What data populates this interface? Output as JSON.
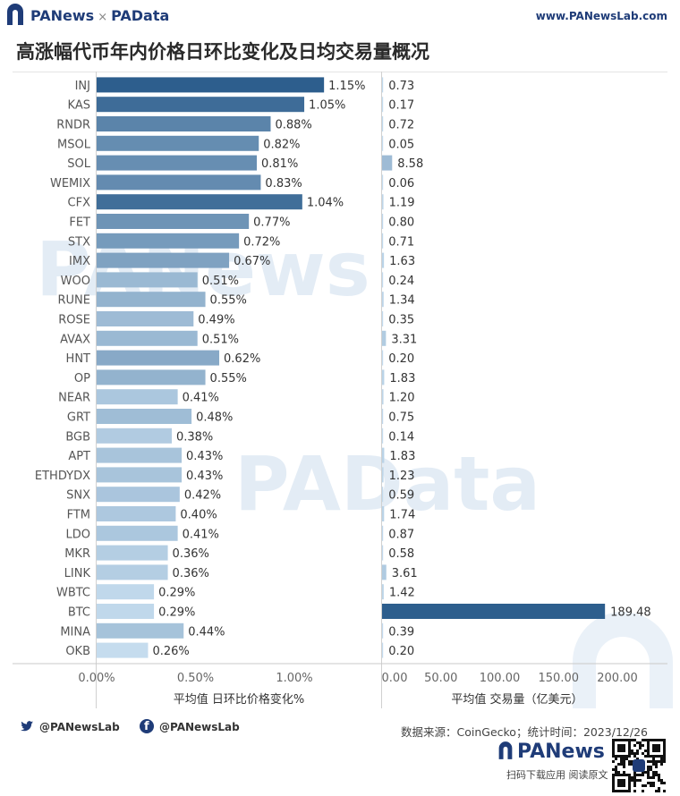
{
  "header": {
    "brand_left": "PANews",
    "brand_sep": "×",
    "brand_right": "PAData",
    "site": "www.PANewsLab.com",
    "title": "高涨幅代币年内价格日环比变化及日均交易量概况"
  },
  "footer": {
    "twitter": "@PANewsLab",
    "facebook": "@PANewsLab",
    "source": "数据来源：CoinGecko；统计时间：2023/12/26",
    "logo": "PANews",
    "logo_sub": "扫码下载应用  阅读原文"
  },
  "watermarks": [
    "PANews",
    "PAData"
  ],
  "colors": {
    "brand": "#1f3c78",
    "bar_dark": "#2d5e8d",
    "bar_light": "#c5dcee"
  },
  "chart_data": [
    {
      "type": "bar",
      "orientation": "horizontal",
      "categories": [
        "INJ",
        "KAS",
        "RNDR",
        "MSOL",
        "SOL",
        "WEMIX",
        "CFX",
        "FET",
        "STX",
        "IMX",
        "WOO",
        "RUNE",
        "ROSE",
        "AVAX",
        "HNT",
        "OP",
        "NEAR",
        "GRT",
        "BGB",
        "APT",
        "ETHDYDX",
        "SNX",
        "FTM",
        "LDO",
        "MKR",
        "LINK",
        "WBTC",
        "BTC",
        "MINA",
        "OKB"
      ],
      "values": [
        1.15,
        1.05,
        0.88,
        0.82,
        0.81,
        0.83,
        1.04,
        0.77,
        0.72,
        0.67,
        0.51,
        0.55,
        0.49,
        0.51,
        0.62,
        0.55,
        0.41,
        0.48,
        0.38,
        0.43,
        0.43,
        0.42,
        0.4,
        0.41,
        0.36,
        0.36,
        0.29,
        0.29,
        0.44,
        0.26
      ],
      "data_labels": [
        "1.15%",
        "1.05%",
        "0.88%",
        "0.82%",
        "0.81%",
        "0.83%",
        "1.04%",
        "0.77%",
        "0.72%",
        "0.67%",
        "0.51%",
        "0.55%",
        "0.49%",
        "0.51%",
        "0.62%",
        "0.55%",
        "0.41%",
        "0.48%",
        "0.38%",
        "0.43%",
        "0.43%",
        "0.42%",
        "0.40%",
        "0.41%",
        "0.36%",
        "0.36%",
        "0.29%",
        "0.29%",
        "0.44%",
        "0.26%"
      ],
      "xlim": [
        0,
        1.25
      ],
      "ticks": [
        0,
        0.5,
        1.0
      ],
      "tick_labels": [
        "0.00%",
        "0.50%",
        "1.00%"
      ],
      "xlabel": "平均值 日环比价格变化%"
    },
    {
      "type": "bar",
      "orientation": "horizontal",
      "categories": [
        "INJ",
        "KAS",
        "RNDR",
        "MSOL",
        "SOL",
        "WEMIX",
        "CFX",
        "FET",
        "STX",
        "IMX",
        "WOO",
        "RUNE",
        "ROSE",
        "AVAX",
        "HNT",
        "OP",
        "NEAR",
        "GRT",
        "BGB",
        "APT",
        "ETHDYDX",
        "SNX",
        "FTM",
        "LDO",
        "MKR",
        "LINK",
        "WBTC",
        "BTC",
        "MINA",
        "OKB"
      ],
      "values": [
        0.73,
        0.17,
        0.72,
        0.05,
        8.58,
        0.06,
        1.19,
        0.8,
        0.71,
        1.63,
        0.24,
        1.34,
        0.35,
        3.31,
        0.2,
        1.83,
        1.2,
        0.75,
        0.14,
        1.83,
        1.23,
        0.59,
        1.74,
        0.87,
        0.58,
        3.61,
        1.42,
        189.48,
        0.39,
        0.2
      ],
      "data_labels": [
        "0.73",
        "0.17",
        "0.72",
        "0.05",
        "8.58",
        "0.06",
        "1.19",
        "0.80",
        "0.71",
        "1.63",
        "0.24",
        "1.34",
        "0.35",
        "3.31",
        "0.20",
        "1.83",
        "1.20",
        "0.75",
        "0.14",
        "1.83",
        "1.23",
        "0.59",
        "1.74",
        "0.87",
        "0.58",
        "3.61",
        "1.42",
        "189.48",
        "0.39",
        "0.20"
      ],
      "xlim": [
        0,
        225
      ],
      "ticks": [
        0,
        50,
        100,
        150,
        200
      ],
      "tick_labels": [
        "0.00",
        "50.00",
        "100.00",
        "150.00",
        "200.00"
      ],
      "xlabel": "平均值 交易量（亿美元）"
    }
  ]
}
